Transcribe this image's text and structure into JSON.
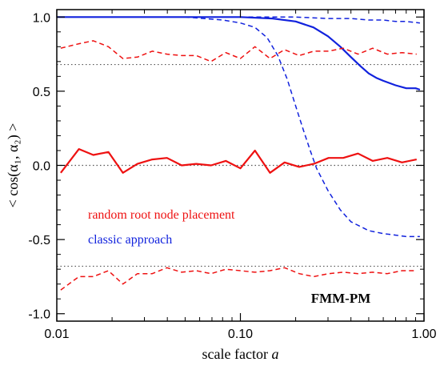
{
  "chart_data": {
    "type": "line",
    "xscale": "log",
    "xlim": [
      0.01,
      1.0
    ],
    "ylim": [
      -1.05,
      1.05
    ],
    "x_ticks": [
      0.01,
      0.1,
      1.0
    ],
    "x_tick_labels": [
      "0.01",
      "0.10",
      "1.00"
    ],
    "y_ticks": [
      -1.0,
      -0.5,
      0.0,
      0.5,
      1.0
    ],
    "y_tick_labels": [
      "-1.0",
      "-0.5",
      "0.0",
      "0.5",
      "1.0"
    ],
    "xlabel_text": "scale factor ",
    "xlabel_italic": "a",
    "ylabel": "< cos(α₁, α₂) >",
    "annotation": "FMM-PM",
    "legend": [
      {
        "label": "random root node placement",
        "color": "#ee1111"
      },
      {
        "label": "classic approach",
        "color": "#1122dd"
      }
    ],
    "reference_lines": [
      {
        "y": 0.68,
        "style": "dotted",
        "color": "#555555"
      },
      {
        "y": 0.0,
        "style": "dotted",
        "color": "#555555"
      },
      {
        "y": -0.68,
        "style": "dotted",
        "color": "#555555"
      }
    ],
    "series": [
      {
        "color": "#1122dd",
        "style": "solid",
        "width": 2.2,
        "x": [
          0.01,
          0.05,
          0.1,
          0.15,
          0.2,
          0.25,
          0.3,
          0.35,
          0.4,
          0.45,
          0.5,
          0.55,
          0.6,
          0.7,
          0.8,
          0.9,
          0.95
        ],
        "y": [
          1.0,
          1.0,
          1.0,
          0.99,
          0.97,
          0.93,
          0.87,
          0.8,
          0.73,
          0.67,
          0.62,
          0.59,
          0.57,
          0.54,
          0.52,
          0.52,
          0.51
        ]
      },
      {
        "color": "#1122dd",
        "style": "dashed",
        "width": 1.5,
        "x": [
          0.01,
          0.05,
          0.08,
          0.1,
          0.12,
          0.14,
          0.16,
          0.18,
          0.2,
          0.22,
          0.24,
          0.26,
          0.3,
          0.35,
          0.4,
          0.5,
          0.6,
          0.7,
          0.8,
          0.95
        ],
        "y": [
          1.0,
          1.0,
          0.98,
          0.96,
          0.93,
          0.86,
          0.74,
          0.58,
          0.4,
          0.24,
          0.1,
          -0.02,
          -0.17,
          -0.3,
          -0.38,
          -0.44,
          -0.46,
          -0.47,
          -0.48,
          -0.48
        ]
      },
      {
        "color": "#1122dd",
        "style": "dashed",
        "width": 1.5,
        "x": [
          0.1,
          0.2,
          0.3,
          0.4,
          0.5,
          0.6,
          0.7,
          0.8,
          0.95
        ],
        "y": [
          1.0,
          1.0,
          0.99,
          0.99,
          0.98,
          0.98,
          0.97,
          0.97,
          0.96
        ]
      },
      {
        "color": "#ee1111",
        "style": "solid",
        "width": 2.2,
        "x": [
          0.0105,
          0.0132,
          0.0158,
          0.0191,
          0.0229,
          0.0275,
          0.0331,
          0.0398,
          0.0479,
          0.0575,
          0.0692,
          0.0832,
          0.1,
          0.12,
          0.145,
          0.174,
          0.209,
          0.251,
          0.302,
          0.363,
          0.437,
          0.525,
          0.631,
          0.759,
          0.912
        ],
        "y": [
          -0.05,
          0.11,
          0.07,
          0.09,
          -0.05,
          0.01,
          0.04,
          0.05,
          0.0,
          0.01,
          0.0,
          0.03,
          -0.02,
          0.1,
          -0.05,
          0.02,
          -0.01,
          0.01,
          0.05,
          0.05,
          0.08,
          0.03,
          0.05,
          0.02,
          0.04
        ]
      },
      {
        "color": "#ee1111",
        "style": "dashed",
        "width": 1.5,
        "x": [
          0.0105,
          0.0132,
          0.0158,
          0.0191,
          0.0229,
          0.0275,
          0.0331,
          0.0398,
          0.0479,
          0.0575,
          0.0692,
          0.0832,
          0.1,
          0.12,
          0.145,
          0.174,
          0.209,
          0.251,
          0.302,
          0.363,
          0.437,
          0.525,
          0.631,
          0.759,
          0.912
        ],
        "y": [
          0.79,
          0.82,
          0.84,
          0.8,
          0.72,
          0.73,
          0.77,
          0.75,
          0.74,
          0.74,
          0.7,
          0.76,
          0.72,
          0.8,
          0.72,
          0.78,
          0.74,
          0.77,
          0.77,
          0.79,
          0.75,
          0.79,
          0.75,
          0.76,
          0.75
        ]
      },
      {
        "color": "#ee1111",
        "style": "dashed",
        "width": 1.5,
        "x": [
          0.0105,
          0.0132,
          0.0158,
          0.0191,
          0.0229,
          0.0275,
          0.0331,
          0.0398,
          0.0479,
          0.0575,
          0.0692,
          0.0832,
          0.1,
          0.12,
          0.145,
          0.174,
          0.209,
          0.251,
          0.302,
          0.363,
          0.437,
          0.525,
          0.631,
          0.759,
          0.912
        ],
        "y": [
          -0.84,
          -0.75,
          -0.75,
          -0.71,
          -0.8,
          -0.73,
          -0.73,
          -0.69,
          -0.72,
          -0.71,
          -0.73,
          -0.7,
          -0.71,
          -0.72,
          -0.71,
          -0.69,
          -0.73,
          -0.75,
          -0.73,
          -0.72,
          -0.73,
          -0.72,
          -0.73,
          -0.71,
          -0.71
        ]
      }
    ]
  }
}
